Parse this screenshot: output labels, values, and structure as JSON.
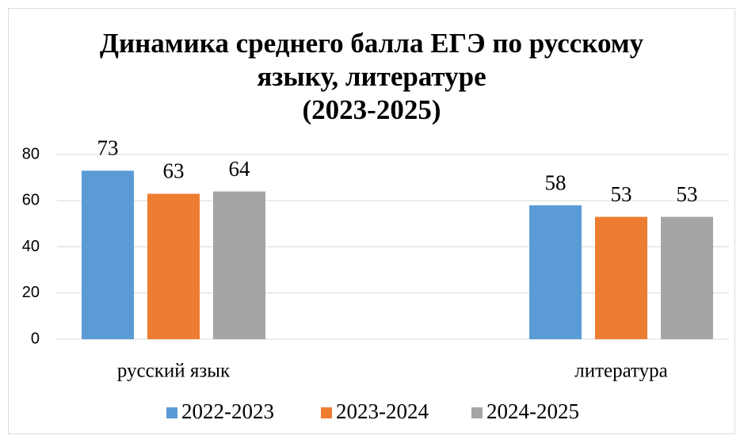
{
  "chart_data": {
    "type": "bar",
    "title": [
      "Динамика среднего балла ЕГЭ по русскому",
      "языку, литературе",
      "(2023-2025)"
    ],
    "categories": [
      "русский язык",
      "литература"
    ],
    "series": [
      {
        "name": "2022-2023",
        "color": "#5b9bd5",
        "values": [
          73,
          58
        ]
      },
      {
        "name": "2023-2024",
        "color": "#ed7d31",
        "values": [
          63,
          53
        ]
      },
      {
        "name": "2024-2025",
        "color": "#a5a5a5",
        "values": [
          64,
          53
        ]
      }
    ],
    "ylim": [
      0,
      80
    ],
    "yticks": [
      0,
      20,
      40,
      60,
      80
    ],
    "grid": true,
    "legend": "bottom"
  }
}
